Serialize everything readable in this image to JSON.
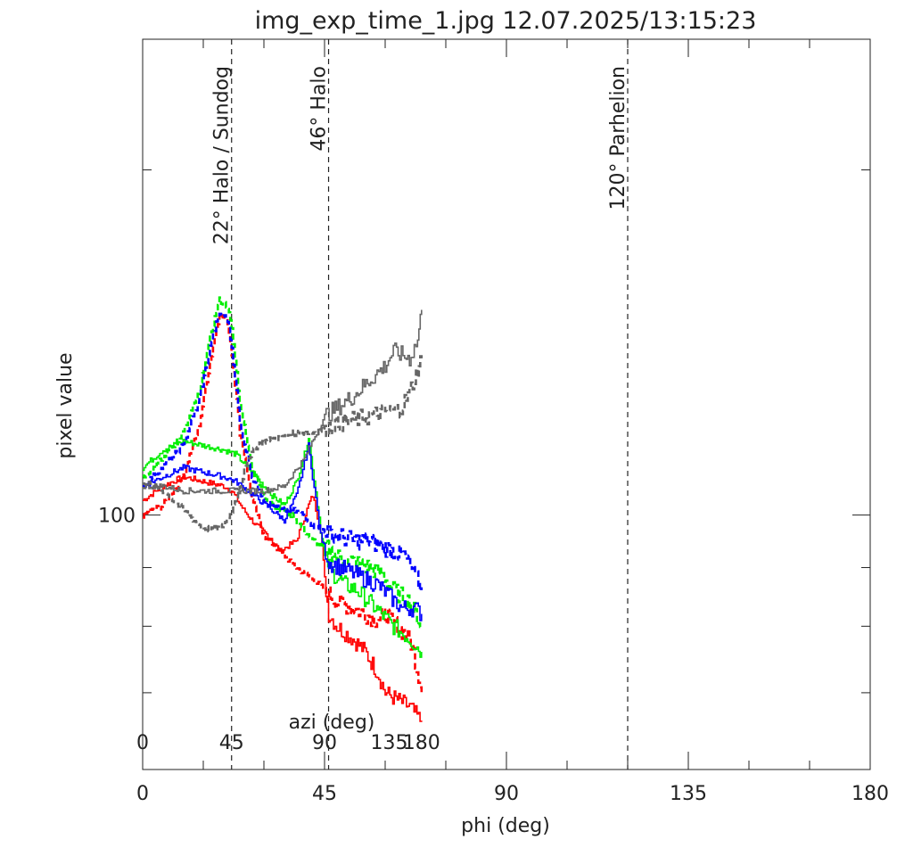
{
  "chart_data": {
    "type": "line",
    "title": "img_exp_time_1.jpg 12.07.2025/13:15:23",
    "xlabel": "phi (deg)",
    "ylabel": "pixel value",
    "xlim": [
      0,
      180
    ],
    "ylog": true,
    "ylim": [
      60,
      260
    ],
    "x_ticks": [
      "0",
      "45",
      "90",
      "135",
      "180"
    ],
    "y_tick_labels": [
      {
        "value": 100,
        "label": "100"
      }
    ],
    "y_minor_ticks": [
      70,
      80,
      90,
      200
    ],
    "grid": false,
    "secondary_axis": {
      "label": "azi (deg)",
      "ticks": [
        {
          "phi": 0,
          "label": "0"
        },
        {
          "phi": 22,
          "label": "45"
        },
        {
          "phi": 45,
          "label": "90"
        },
        {
          "phi": 61,
          "label": "135"
        },
        {
          "phi": 69,
          "label": "180"
        }
      ]
    },
    "reference_lines": [
      {
        "x": 22,
        "label": "22° Halo / Sundog"
      },
      {
        "x": 46,
        "label": "46° Halo"
      },
      {
        "x": 120,
        "label": "120° Parhelion"
      }
    ],
    "series": [
      {
        "color": "#ff0000",
        "dash": false,
        "x": [
          0,
          5,
          10,
          15,
          20,
          22,
          25,
          28,
          31,
          34,
          38,
          41,
          42,
          44,
          45,
          46,
          48,
          52,
          55,
          58,
          60,
          63,
          66,
          69
        ],
        "y": [
          103,
          106,
          108,
          107,
          106,
          105,
          101,
          98,
          96,
          93,
          95,
          102,
          104,
          97,
          88,
          82,
          80,
          78,
          76,
          73,
          70,
          69,
          68,
          66
        ]
      },
      {
        "color": "#ff0000",
        "dash": true,
        "x": [
          0,
          5,
          10,
          14,
          17,
          19,
          21,
          22,
          24,
          27,
          30,
          34,
          38,
          42,
          45,
          48,
          52,
          55,
          58,
          60,
          63,
          66,
          67,
          69
        ],
        "y": [
          100,
          102,
          108,
          120,
          138,
          150,
          147,
          138,
          118,
          103,
          96,
          93,
          90,
          88,
          86,
          84,
          83,
          82,
          81,
          82,
          80,
          78,
          76,
          70
        ]
      },
      {
        "color": "#00ee00",
        "dash": false,
        "x": [
          0,
          5,
          10,
          15,
          20,
          23,
          26,
          29,
          32,
          35,
          38,
          40,
          41,
          42,
          44,
          45,
          47,
          50,
          53,
          56,
          59,
          62,
          66,
          69
        ],
        "y": [
          110,
          114,
          116,
          115,
          114,
          113,
          110,
          107,
          104,
          102,
          107,
          113,
          117,
          110,
          97,
          92,
          89,
          87,
          86,
          84,
          82,
          80,
          78,
          76
        ]
      },
      {
        "color": "#00ee00",
        "dash": true,
        "x": [
          0,
          5,
          10,
          14,
          17,
          19,
          21,
          22,
          24,
          27,
          30,
          34,
          37,
          40,
          42,
          45,
          48,
          52,
          56,
          59,
          62,
          66,
          69
        ],
        "y": [
          108,
          112,
          118,
          128,
          145,
          154,
          152,
          145,
          125,
          110,
          104,
          101,
          100,
          97,
          95,
          94,
          92,
          91,
          90,
          89,
          86,
          84,
          80
        ]
      },
      {
        "color": "#0000ff",
        "dash": false,
        "x": [
          0,
          5,
          10,
          15,
          20,
          23,
          26,
          29,
          32,
          35,
          38,
          40,
          41,
          42,
          44,
          46,
          49,
          52,
          55,
          58,
          61,
          64,
          67,
          69
        ],
        "y": [
          106,
          108,
          110,
          109,
          108,
          107,
          105,
          103,
          101,
          99,
          104,
          111,
          115,
          108,
          96,
          91,
          90,
          89,
          88,
          87,
          85,
          83,
          83,
          82
        ]
      },
      {
        "color": "#0000ff",
        "dash": true,
        "x": [
          0,
          5,
          10,
          14,
          17,
          19,
          21,
          22,
          24,
          27,
          30,
          34,
          37,
          40,
          42,
          45,
          48,
          52,
          56,
          59,
          62,
          65,
          67,
          69
        ],
        "y": [
          106,
          110,
          115,
          126,
          142,
          150,
          148,
          140,
          120,
          108,
          103,
          101,
          101,
          100,
          98,
          97,
          96,
          95,
          95,
          94,
          93,
          92,
          89,
          86
        ]
      },
      {
        "color": "#666666",
        "dash": false,
        "x": [
          0,
          5,
          10,
          15,
          20,
          25,
          30,
          35,
          40,
          43,
          45,
          48,
          52,
          56,
          60,
          62,
          64,
          66,
          68,
          69
        ],
        "y": [
          106,
          106,
          105,
          105,
          105,
          105,
          105,
          106,
          112,
          118,
          122,
          124,
          127,
          131,
          135,
          139,
          138,
          137,
          142,
          151
        ]
      },
      {
        "color": "#666666",
        "dash": true,
        "x": [
          0,
          5,
          10,
          14,
          17,
          20,
          22,
          24,
          27,
          30,
          34,
          38,
          42,
          45,
          48,
          52,
          56,
          60,
          64,
          66,
          68,
          69
        ],
        "y": [
          107,
          105,
          101,
          98,
          97,
          98,
          101,
          106,
          114,
          116,
          117,
          118,
          118,
          119,
          120,
          121,
          122,
          123,
          124,
          128,
          134,
          137
        ]
      }
    ]
  }
}
